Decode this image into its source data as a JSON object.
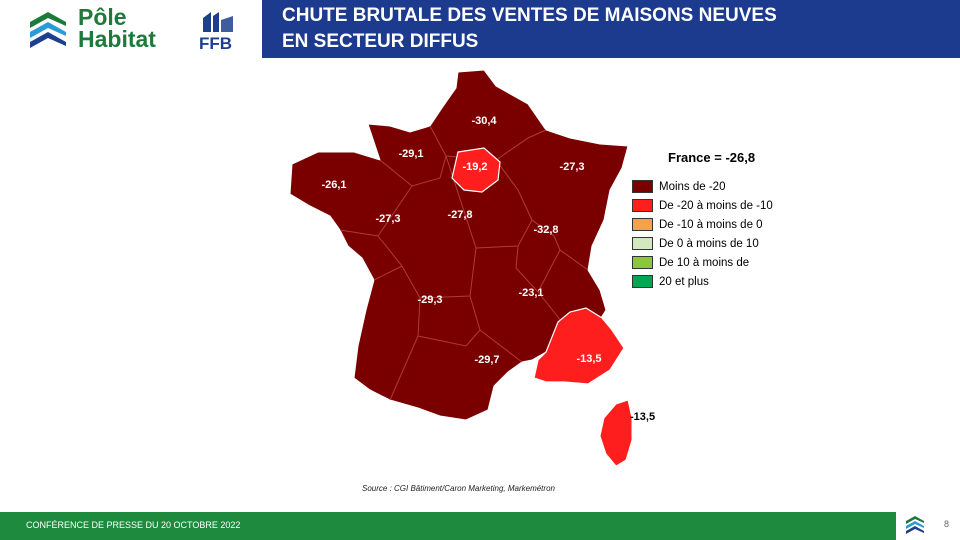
{
  "header": {
    "logo_line1": "Pôle",
    "logo_line2": "Habitat",
    "logo_ffb": "FFB",
    "title_line1": "CHUTE BRUTALE DES VENTES DE MAISONS NEUVES",
    "title_line2": "EN SECTEUR DIFFUS"
  },
  "map": {
    "national_total": "France = -26,8",
    "regions": [
      {
        "name": "Hauts-de-France",
        "value": "-30,4",
        "category": "Moins de -20"
      },
      {
        "name": "Normandie",
        "value": "-29,1",
        "category": "Moins de -20"
      },
      {
        "name": "Île-de-France",
        "value": "-19,2",
        "category": "De -20 à moins de -10"
      },
      {
        "name": "Grand Est",
        "value": "-27,3",
        "category": "Moins de -20"
      },
      {
        "name": "Bretagne",
        "value": "-26,1",
        "category": "Moins de -20"
      },
      {
        "name": "Pays de la Loire",
        "value": "-27,3",
        "category": "Moins de -20"
      },
      {
        "name": "Centre-Val de Loire",
        "value": "-27,8",
        "category": "Moins de -20"
      },
      {
        "name": "Bourgogne-Franche-Comté",
        "value": "-32,8",
        "category": "Moins de -20"
      },
      {
        "name": "Nouvelle-Aquitaine",
        "value": "-29,3",
        "category": "Moins de -20"
      },
      {
        "name": "Auvergne-Rhône-Alpes",
        "value": "-23,1",
        "category": "Moins de -20"
      },
      {
        "name": "Occitanie",
        "value": "-29,7",
        "category": "Moins de -20"
      },
      {
        "name": "Provence-Alpes-Côte d'Azur",
        "value": "-13,5",
        "category": "De -20 à moins de -10"
      },
      {
        "name": "Corse",
        "value": "-13,5",
        "category": "De -20 à moins de -10"
      }
    ],
    "legend": [
      {
        "label": "Moins de -20",
        "color": "#7a0000"
      },
      {
        "label": "De -20 à moins de -10",
        "color": "#ff1e1e"
      },
      {
        "label": "De -10 à moins de 0",
        "color": "#f7a14a"
      },
      {
        "label": "De 0 à moins de 10",
        "color": "#d3e8c0"
      },
      {
        "label": "De 10 à moins de",
        "color": "#8cc63f"
      },
      {
        "label": "20 et plus",
        "color": "#00a651"
      }
    ]
  },
  "source": "Source : CGI Bâtiment/Caron Marketing, Markemétron",
  "footer": {
    "text": "CONFÉRENCE DE PRESSE DU 20 OCTOBRE 2022",
    "page": "8"
  }
}
